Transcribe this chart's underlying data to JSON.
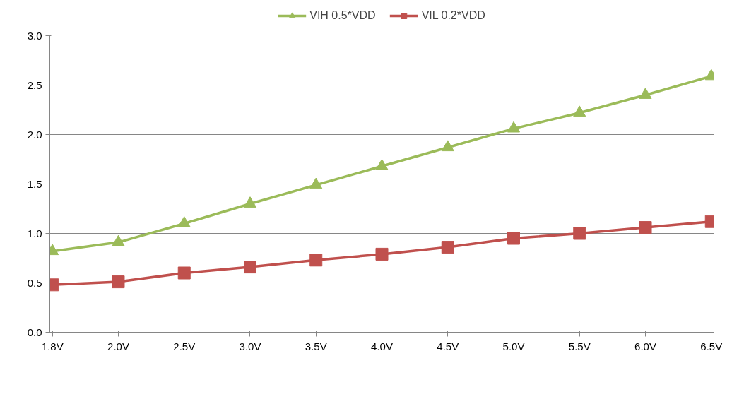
{
  "chart_data": {
    "type": "line",
    "categories": [
      "1.8V",
      "2.0V",
      "2.5V",
      "3.0V",
      "3.5V",
      "4.0V",
      "4.5V",
      "5.0V",
      "5.5V",
      "6.0V",
      "6.5V"
    ],
    "series": [
      {
        "name": "VIH 0.5*VDD",
        "color": "#9bbb59",
        "marker": "triangle",
        "values": [
          0.82,
          0.91,
          1.1,
          1.3,
          1.49,
          1.68,
          1.87,
          2.06,
          2.22,
          2.4,
          2.59
        ]
      },
      {
        "name": "VIL 0.2*VDD",
        "color": "#c0504d",
        "marker": "square",
        "values": [
          0.48,
          0.51,
          0.6,
          0.66,
          0.73,
          0.79,
          0.86,
          0.95,
          1.0,
          1.06,
          1.12
        ]
      }
    ],
    "ylim": [
      0,
      3.0
    ],
    "yticks": [
      {
        "value": 0,
        "label": "0.0"
      },
      {
        "value": 0.5,
        "label": "0.5"
      },
      {
        "value": 1.0,
        "label": "1.0"
      },
      {
        "value": 1.5,
        "label": "1.5"
      },
      {
        "value": 2.0,
        "label": "2.0"
      },
      {
        "value": 2.5,
        "label": "2.5"
      },
      {
        "value": 3.0,
        "label": "3.0"
      }
    ],
    "grid": "y",
    "legend": "top",
    "line_style": "solid"
  }
}
